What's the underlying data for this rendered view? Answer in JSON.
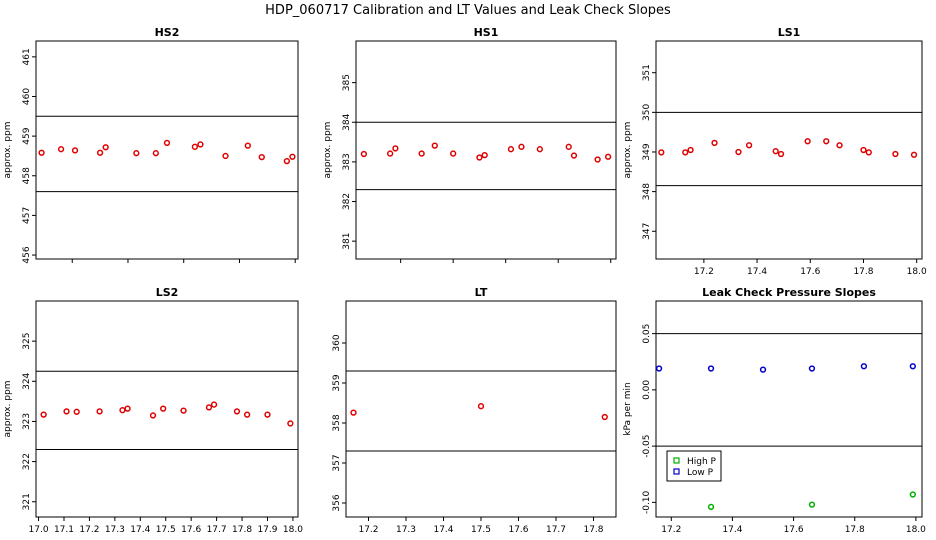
{
  "title": "HDP_060717  Calibration and LT Values and Leak Check Slopes",
  "chart_data": [
    {
      "type": "scatter",
      "title": "HS2",
      "ylabel": "approx. ppm",
      "xlim": [
        17.07,
        18.01
      ],
      "ylim": [
        455.9,
        461.4
      ],
      "xticks": [
        17.2,
        17.4,
        17.6,
        17.8,
        18.0
      ],
      "xtick_labels": [
        "17.2",
        "17.4",
        "17.6",
        "17.8",
        "18.0"
      ],
      "show_xtick_labels": false,
      "yticks": [
        456,
        457,
        458,
        459,
        460,
        461
      ],
      "ytick_labels": [
        "456",
        "457",
        "458",
        "459",
        "460",
        "461"
      ],
      "hlines": [
        459.5,
        457.6
      ],
      "series": [
        {
          "name": "HS2",
          "color": "#e00000",
          "marker": "circle",
          "x": [
            17.09,
            17.16,
            17.21,
            17.3,
            17.32,
            17.43,
            17.5,
            17.54,
            17.64,
            17.66,
            17.75,
            17.83,
            17.88,
            17.97,
            17.99
          ],
          "y": [
            458.58,
            458.67,
            458.64,
            458.58,
            458.72,
            458.57,
            458.57,
            458.83,
            458.73,
            458.79,
            458.5,
            458.76,
            458.47,
            458.37,
            458.48
          ]
        }
      ]
    },
    {
      "type": "scatter",
      "title": "HS1",
      "ylabel": "approx. ppm",
      "xlim": [
        17.03,
        18.02
      ],
      "ylim": [
        380.55,
        386.05
      ],
      "xticks": [
        17.2,
        17.4,
        17.6,
        17.8,
        18.0
      ],
      "xtick_labels": [
        "17.2",
        "17.4",
        "17.6",
        "17.8",
        "18.0"
      ],
      "show_xtick_labels": false,
      "yticks": [
        381,
        382,
        383,
        384,
        385
      ],
      "ytick_labels": [
        "381",
        "382",
        "383",
        "384",
        "385"
      ],
      "hlines": [
        384.0,
        382.3
      ],
      "series": [
        {
          "name": "HS1",
          "color": "#e00000",
          "marker": "circle",
          "x": [
            17.06,
            17.16,
            17.18,
            17.28,
            17.33,
            17.4,
            17.5,
            17.52,
            17.62,
            17.66,
            17.73,
            17.84,
            17.86,
            17.95,
            17.99
          ],
          "y": [
            383.2,
            383.21,
            383.34,
            383.21,
            383.41,
            383.21,
            383.11,
            383.17,
            383.32,
            383.38,
            383.32,
            383.38,
            383.16,
            383.06,
            383.13
          ]
        }
      ]
    },
    {
      "type": "scatter",
      "title": "LS1",
      "ylabel": "approx. ppm",
      "xlim": [
        17.02,
        18.02
      ],
      "ylim": [
        346.3,
        351.8
      ],
      "xticks": [
        17.2,
        17.4,
        17.6,
        17.8,
        18.0
      ],
      "xtick_labels": [
        "17.2",
        "17.4",
        "17.6",
        "17.8",
        "18.0"
      ],
      "show_xtick_labels": true,
      "yticks": [
        347,
        348,
        349,
        350,
        351
      ],
      "ytick_labels": [
        "347",
        "348",
        "349",
        "350",
        "351"
      ],
      "hlines": [
        350.0,
        348.15
      ],
      "series": [
        {
          "name": "LS1",
          "color": "#e00000",
          "marker": "circle",
          "x": [
            17.04,
            17.13,
            17.15,
            17.24,
            17.33,
            17.37,
            17.47,
            17.49,
            17.59,
            17.66,
            17.71,
            17.8,
            17.82,
            17.92,
            17.99
          ],
          "y": [
            348.99,
            348.99,
            349.05,
            349.23,
            349.0,
            349.17,
            349.02,
            348.95,
            349.27,
            349.27,
            349.17,
            349.05,
            348.99,
            348.95,
            348.93
          ]
        }
      ]
    },
    {
      "type": "scatter",
      "title": "LS2",
      "ylabel": "approx. ppm",
      "xlim": [
        16.99,
        18.02
      ],
      "ylim": [
        320.62,
        326.0
      ],
      "xticks": [
        17.0,
        17.1,
        17.2,
        17.3,
        17.4,
        17.5,
        17.6,
        17.7,
        17.8,
        17.9,
        18.0
      ],
      "xtick_labels": [
        "17.0",
        "17.1",
        "17.2",
        "17.3",
        "17.4",
        "17.5",
        "17.6",
        "17.7",
        "17.8",
        "17.9",
        "18.0"
      ],
      "show_xtick_labels": true,
      "yticks": [
        321,
        322,
        323,
        324,
        325
      ],
      "ytick_labels": [
        "321",
        "322",
        "323",
        "324",
        "325"
      ],
      "hlines": [
        324.25,
        322.3
      ],
      "series": [
        {
          "name": "LS2",
          "color": "#e00000",
          "marker": "circle",
          "x": [
            17.02,
            17.11,
            17.15,
            17.24,
            17.33,
            17.35,
            17.45,
            17.49,
            17.57,
            17.67,
            17.69,
            17.78,
            17.82,
            17.9,
            17.99
          ],
          "y": [
            323.17,
            323.25,
            323.24,
            323.25,
            323.28,
            323.32,
            323.15,
            323.32,
            323.27,
            323.35,
            323.42,
            323.25,
            323.17,
            323.17,
            322.95
          ]
        }
      ]
    },
    {
      "type": "scatter",
      "title": "LT",
      "ylabel": "",
      "xlim": [
        17.14,
        17.86
      ],
      "ylim": [
        355.65,
        361.05
      ],
      "xticks": [
        17.2,
        17.3,
        17.4,
        17.5,
        17.6,
        17.7,
        17.8
      ],
      "xtick_labels": [
        "17.2",
        "17.3",
        "17.4",
        "17.5",
        "17.6",
        "17.7",
        "17.8"
      ],
      "show_xtick_labels": true,
      "yticks": [
        356,
        357,
        358,
        359,
        360
      ],
      "ytick_labels": [
        "356",
        "357",
        "358",
        "359",
        "360"
      ],
      "hlines": [
        359.3,
        357.3
      ],
      "series": [
        {
          "name": "LT",
          "color": "#e00000",
          "marker": "circle",
          "x": [
            17.16,
            17.5,
            17.83
          ],
          "y": [
            358.26,
            358.42,
            358.15
          ]
        }
      ]
    },
    {
      "type": "scatter",
      "title": "Leak Check Pressure Slopes",
      "ylabel": "kPa per min",
      "xlim": [
        17.15,
        18.02
      ],
      "ylim": [
        -0.113,
        0.079
      ],
      "xticks": [
        17.2,
        17.4,
        17.6,
        17.8,
        18.0
      ],
      "xtick_labels": [
        "17.2",
        "17.4",
        "17.6",
        "17.8",
        "18.0"
      ],
      "show_xtick_labels": true,
      "yticks": [
        -0.1,
        -0.05,
        0.0,
        0.05
      ],
      "ytick_labels": [
        "-0.10",
        "-0.05",
        "0.00",
        "0.05"
      ],
      "hlines": [
        0.05,
        -0.05
      ],
      "legend": {
        "position": "bottom-left",
        "entries": [
          "High P",
          "Low P"
        ]
      },
      "series": [
        {
          "name": "High P",
          "color": "#00b000",
          "marker": "circle",
          "x": [
            17.33,
            17.66,
            17.99
          ],
          "y": [
            -0.104,
            -0.102,
            -0.093
          ]
        },
        {
          "name": "Low P",
          "color": "#0000d0",
          "marker": "circle",
          "x": [
            17.16,
            17.33,
            17.5,
            17.66,
            17.83,
            17.99
          ],
          "y": [
            0.019,
            0.019,
            0.018,
            0.019,
            0.021,
            0.021
          ]
        }
      ]
    }
  ]
}
